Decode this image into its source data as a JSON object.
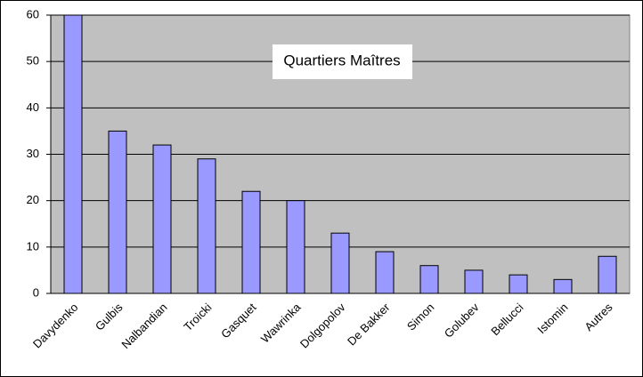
{
  "chart_data": {
    "type": "bar",
    "title": "Quartiers Maîtres",
    "categories": [
      "Davydenko",
      "Gulbis",
      "Nalbandian",
      "Troicki",
      "Gasquet",
      "Wawrinka",
      "Dolgopolov",
      "De Bakker",
      "Simon",
      "Golubev",
      "Bellucci",
      "Istomin",
      "Autres"
    ],
    "values": [
      60,
      35,
      32,
      29,
      22,
      20,
      13,
      9,
      6,
      5,
      4,
      3,
      8
    ],
    "color": "#9999ff",
    "ylim": [
      0,
      60
    ],
    "yticks": [
      0,
      10,
      20,
      30,
      40,
      50,
      60
    ],
    "grid": true
  }
}
